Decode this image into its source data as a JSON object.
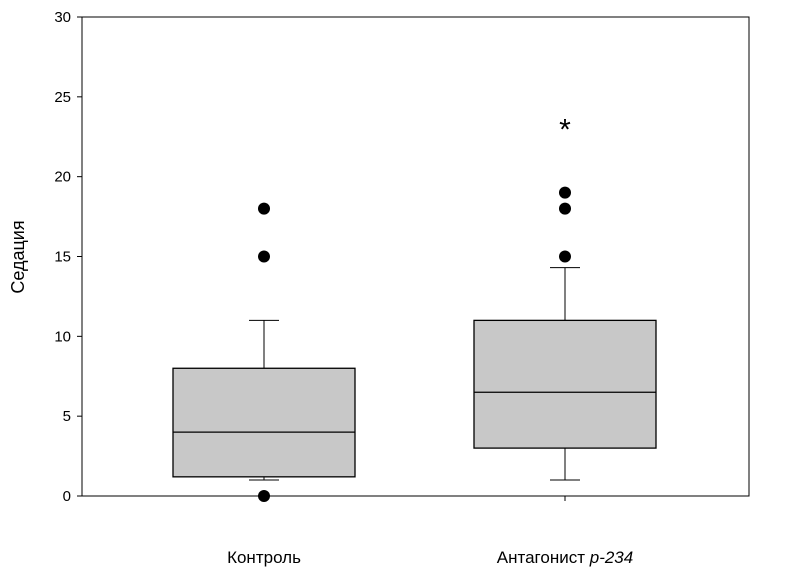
{
  "chart_data": {
    "type": "box",
    "title": "",
    "xlabel": "",
    "ylabel": "Седация",
    "ylim": [
      0,
      30
    ],
    "yticks": [
      0,
      5,
      10,
      15,
      20,
      25,
      30
    ],
    "ytick_labels": [
      "0",
      "5",
      "10",
      "15",
      "20",
      "25",
      "30"
    ],
    "grid": false,
    "box_fill": "#c8c8c8",
    "line_color": "#000000",
    "categories": [
      {
        "label": "Контроль",
        "label_plain": "Контроль",
        "label_italic": ""
      },
      {
        "label": "Антагонист p-234",
        "label_plain": "Антагонист ",
        "label_italic": "p-234"
      }
    ],
    "boxes": [
      {
        "category": "Контроль",
        "whisker_low": 1,
        "q1": 1.2,
        "median": 4,
        "q3": 8,
        "whisker_high": 11,
        "outliers": [
          0,
          15,
          18
        ]
      },
      {
        "category": "Антагонист p-234",
        "whisker_low": 1,
        "q1": 3,
        "median": 6.5,
        "q3": 11,
        "whisker_high": 14.3,
        "outliers": [
          15,
          18,
          19
        ]
      }
    ],
    "annotations": [
      {
        "category": "Антагонист p-234",
        "text": "*",
        "y": 23.2
      }
    ]
  }
}
